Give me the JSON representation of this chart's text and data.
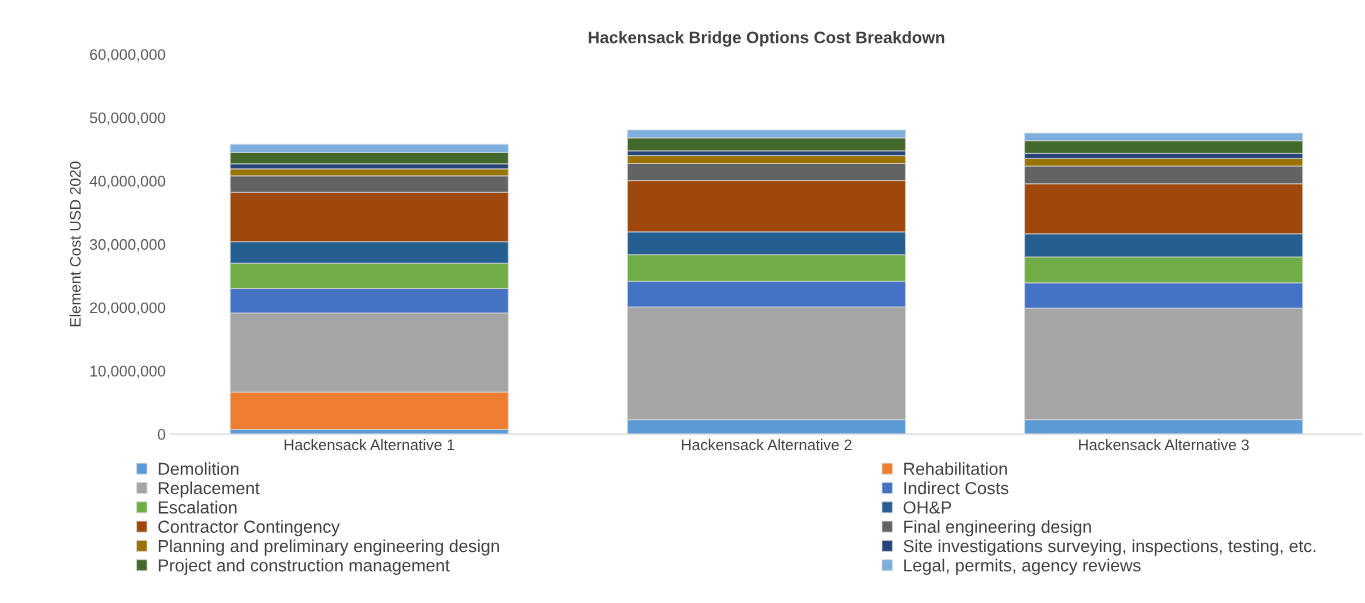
{
  "chart_data": {
    "type": "bar",
    "stacked": true,
    "title": "Hackensack Bridge Options Cost Breakdown",
    "ylabel": "Element Cost USD 2020",
    "categories": [
      "Hackensack Alternative 1",
      "Hackensack Alternative 2",
      "Hackensack Alternative 3"
    ],
    "ylim": [
      0,
      60000000
    ],
    "yticks": [
      {
        "value": 0,
        "label": "0"
      },
      {
        "value": 10000000,
        "label": "10,000,000"
      },
      {
        "value": 20000000,
        "label": "20,000,000"
      },
      {
        "value": 30000000,
        "label": "30,000,000"
      },
      {
        "value": 40000000,
        "label": "40,000,000"
      },
      {
        "value": 50000000,
        "label": "50,000,000"
      },
      {
        "value": 60000000,
        "label": "60,000,000"
      }
    ],
    "grid": false,
    "legend": "bottom",
    "series": [
      {
        "name": "Demolition",
        "color": "#5b9bd5",
        "values": [
          750000,
          2300000,
          2300000
        ]
      },
      {
        "name": "Rehabilitation",
        "color": "#ed7d31",
        "values": [
          5900000,
          0,
          0
        ]
      },
      {
        "name": "Replacement",
        "color": "#a5a5a5",
        "values": [
          12500000,
          17800000,
          17600000
        ]
      },
      {
        "name": "Indirect Costs",
        "color": "#4472c4",
        "values": [
          3850000,
          4050000,
          4000000
        ]
      },
      {
        "name": "Escalation",
        "color": "#70ad47",
        "values": [
          4000000,
          4200000,
          4100000
        ]
      },
      {
        "name": "OH&P",
        "color": "#255e91",
        "values": [
          3400000,
          3600000,
          3650000
        ]
      },
      {
        "name": "Contractor Contingency",
        "color": "#9e480e",
        "values": [
          7800000,
          8100000,
          7900000
        ]
      },
      {
        "name": "Final engineering design",
        "color": "#636363",
        "values": [
          2600000,
          2700000,
          2800000
        ]
      },
      {
        "name": "Planning and preliminary engineering design",
        "color": "#997300",
        "values": [
          1100000,
          1250000,
          1200000
        ]
      },
      {
        "name": "Site investigations surveying, inspections, testing, etc.",
        "color": "#264478",
        "values": [
          800000,
          750000,
          800000
        ]
      },
      {
        "name": "Project and construction management",
        "color": "#43682b",
        "values": [
          1800000,
          2050000,
          2000000
        ]
      },
      {
        "name": "Legal, permits, agency reviews",
        "color": "#7cafdd",
        "values": [
          1300000,
          1250000,
          1200000
        ]
      }
    ]
  }
}
